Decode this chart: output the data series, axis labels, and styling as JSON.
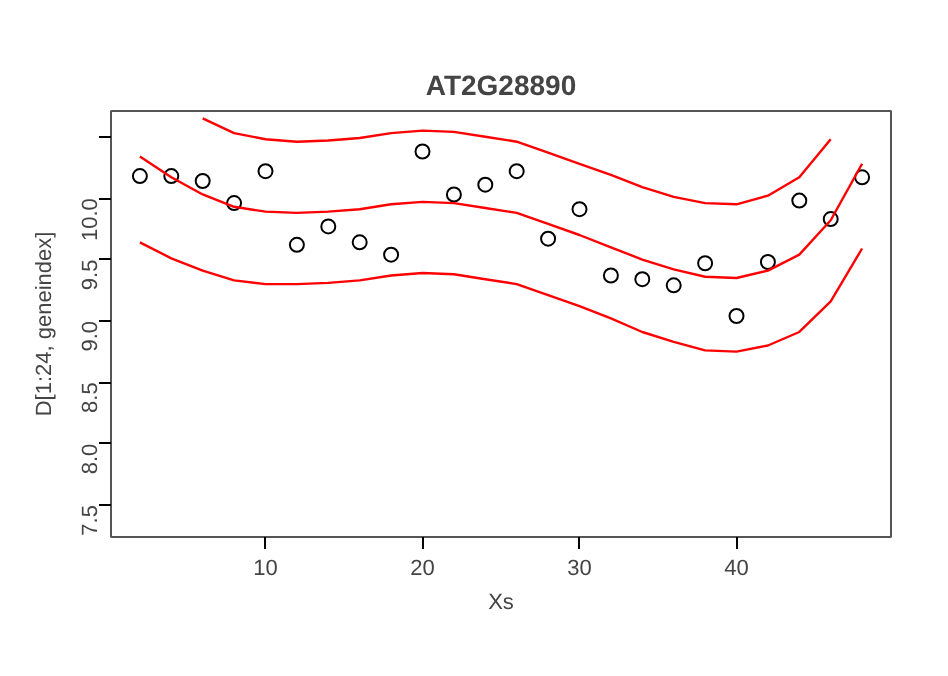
{
  "chart_data": {
    "type": "scatter",
    "title": "AT2G28890",
    "xlabel": "Xs",
    "ylabel": "D[1:24, geneindex]",
    "x": [
      2,
      4,
      6,
      8,
      10,
      12,
      14,
      16,
      18,
      20,
      22,
      24,
      26,
      28,
      30,
      32,
      34,
      36,
      38,
      40,
      42,
      44,
      46,
      48
    ],
    "xlim": [
      0.16,
      49.84
    ],
    "xticks": [
      10,
      20,
      30,
      40
    ],
    "ylim": [
      7.24,
      10.71
    ],
    "yticks": [
      7.5,
      {
        "value": 8,
        "label": "8.0"
      },
      8.5,
      {
        "value": 9,
        "label": "9.0"
      },
      9.5,
      {
        "value": 10,
        "label": "10.0"
      },
      {
        "value": 10.5,
        "label": null
      }
    ],
    "grid": false,
    "series": [
      {
        "marker": "circle",
        "color": "#000000",
        "values": [
          10.18,
          10.18,
          10.14,
          9.96,
          10.22,
          9.62,
          9.77,
          9.64,
          9.54,
          10.38,
          10.03,
          10.11,
          10.22,
          9.67,
          9.91,
          9.37,
          9.34,
          9.29,
          9.47,
          9.04,
          9.48,
          9.98,
          9.83,
          10.17
        ]
      },
      {
        "type": "line",
        "color": "#ff0000",
        "values": [
          10.34,
          10.17,
          10.03,
          9.93,
          9.89,
          9.88,
          9.89,
          9.91,
          9.95,
          9.97,
          9.96,
          9.92,
          9.88,
          9.79,
          9.7,
          9.6,
          9.5,
          9.42,
          9.36,
          9.35,
          9.41,
          9.54,
          9.82,
          10.28
        ]
      },
      {
        "type": "line",
        "color": "#ff0000",
        "values": [
          null,
          null,
          10.65,
          10.53,
          10.48,
          10.46,
          10.47,
          10.49,
          10.53,
          10.55,
          10.54,
          10.5,
          10.46,
          10.37,
          10.28,
          10.19,
          10.09,
          10.01,
          9.96,
          9.95,
          10.02,
          10.17,
          10.48,
          null
        ]
      },
      {
        "type": "line",
        "color": "#ff0000",
        "values": [
          9.64,
          9.51,
          9.41,
          9.33,
          9.3,
          9.3,
          9.31,
          9.33,
          9.37,
          9.39,
          9.38,
          9.34,
          9.3,
          9.21,
          9.12,
          9.02,
          8.91,
          8.83,
          8.76,
          8.75,
          8.8,
          8.91,
          9.16,
          9.59
        ]
      }
    ]
  }
}
